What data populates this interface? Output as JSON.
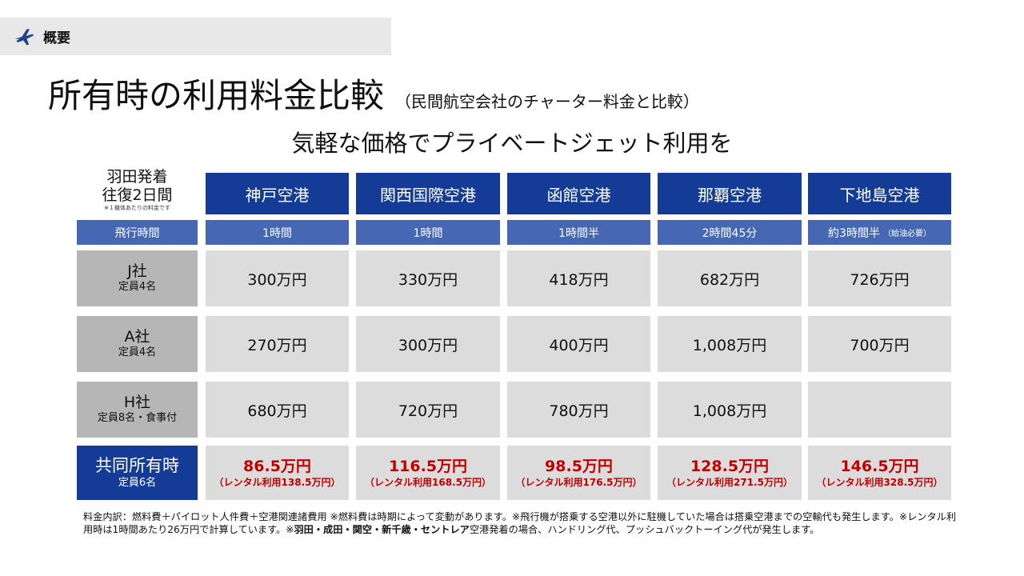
{
  "section": {
    "label": "概要",
    "icon": "airplane-icon"
  },
  "title": {
    "main": "所有時の利用料金比較",
    "sub": "（民間航空会社のチャーター料金と比較）"
  },
  "subtitle": "気軽な価格でプライベートジェット利用を",
  "corner": {
    "line1": "羽田発着",
    "line2": "往復2日間",
    "note": "※１機体あたりの料金です"
  },
  "airports": [
    "神戸空港",
    "関西国際空港",
    "函館空港",
    "那覇空港",
    "下地島空港"
  ],
  "flight_time": {
    "label": "飛行時間",
    "values": [
      "1時間",
      "1時間",
      "1時間半",
      "2時間45分",
      "約3時間半"
    ],
    "last_note": "（給油必要）"
  },
  "rows": [
    {
      "name": "J社",
      "capacity": "定員4名",
      "values": [
        "300万円",
        "330万円",
        "418万円",
        "682万円",
        "726万円"
      ]
    },
    {
      "name": "A社",
      "capacity": "定員4名",
      "values": [
        "270万円",
        "300万円",
        "400万円",
        "1,008万円",
        "700万円"
      ]
    },
    {
      "name": "H社",
      "capacity": "定員8名・食事付",
      "values": [
        "680万円",
        "720万円",
        "780万円",
        "1,008万円",
        ""
      ]
    }
  ],
  "shared": {
    "name": "共同所有時",
    "capacity": "定員6名",
    "values": [
      {
        "price": "86.5万円",
        "rent": "（レンタル利用138.5万円）"
      },
      {
        "price": "116.5万円",
        "rent": "（レンタル利用168.5万円）"
      },
      {
        "price": "98.5万円",
        "rent": "（レンタル利用176.5万円）"
      },
      {
        "price": "128.5万円",
        "rent": "（レンタル利用271.5万円）"
      },
      {
        "price": "146.5万円",
        "rent": "（レンタル利用328.5万円）"
      }
    ]
  },
  "footnote": {
    "p1": "料金内訳：燃料費＋パイロット人件費＋空港関連諸費用 ※燃料費は時期によって変動があります。※飛行機が搭乗する空港以外に駐機していた場合は搭乗空港までの空輸代も発生します。※レンタル利用時は1時間あたり26万円で計算しています。※",
    "bold": "羽田・成田・関空・新千歳・セントレア",
    "p2": "空港発着の場合、ハンドリング代、プッシュバックトーイング代が発生します。"
  },
  "colors": {
    "header_blue": "#143c96",
    "time_blue": "#4668b4",
    "price_red": "#c00000",
    "label_gray": "#b6b6b6",
    "cell_gray": "#dcdcdc"
  }
}
